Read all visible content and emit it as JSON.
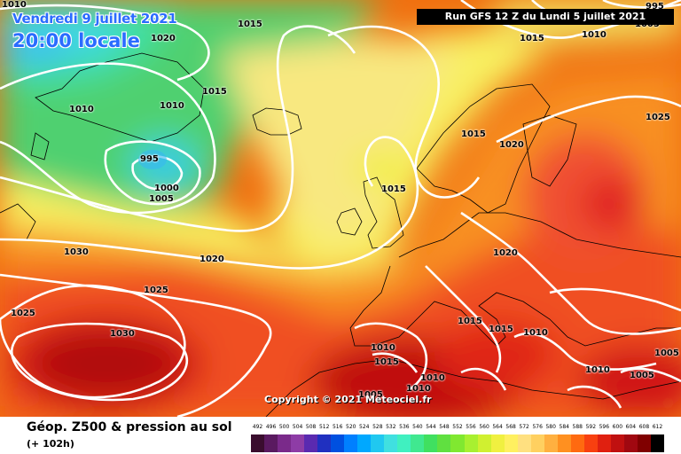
{
  "header": {
    "date_label": "Vendredi 9 juillet 2021",
    "time_label": "20:00 locale",
    "run_label": "Run GFS 12 Z du Lundi 5 juillet 2021"
  },
  "copyright": "Copyright © 2021 Meteociel.fr",
  "footer": {
    "title": "Géop. Z500 & pression au sol",
    "subtitle": "(+ 102h)"
  },
  "isobar_labels": [
    {
      "text": "1010",
      "id": "tl-1010"
    },
    {
      "text": "995",
      "id": "tr-995"
    },
    {
      "text": "1020",
      "id": "greenland-1020"
    },
    {
      "text": "1015",
      "id": "north-1015"
    },
    {
      "text": "1015",
      "id": "top-1015"
    },
    {
      "text": "1010",
      "id": "top-1010"
    },
    {
      "text": "1005",
      "id": "tr-1005"
    },
    {
      "text": "1010",
      "id": "w-1010"
    },
    {
      "text": "1010",
      "id": "greenland-1010"
    },
    {
      "text": "1015",
      "id": "iceland-1015"
    },
    {
      "text": "995",
      "id": "low-995"
    },
    {
      "text": "1000",
      "id": "low-1000"
    },
    {
      "text": "1005",
      "id": "low-1005"
    },
    {
      "text": "1015",
      "id": "norway-1015"
    },
    {
      "text": "1020",
      "id": "sweden-1020"
    },
    {
      "text": "1025",
      "id": "russia-1025"
    },
    {
      "text": "1015",
      "id": "uk-1015"
    },
    {
      "text": "1030",
      "id": "atl-1030"
    },
    {
      "text": "1020",
      "id": "mid-1020"
    },
    {
      "text": "1020",
      "id": "eu-1020"
    },
    {
      "text": "1025",
      "id": "atl-1025"
    },
    {
      "text": "1025",
      "id": "sw-1025"
    },
    {
      "text": "1030",
      "id": "azores-1030"
    },
    {
      "text": "1015",
      "id": "balk-1015"
    },
    {
      "text": "1015",
      "id": "it-1015"
    },
    {
      "text": "1010",
      "id": "it-1010"
    },
    {
      "text": "1010",
      "id": "sp-1010"
    },
    {
      "text": "1015",
      "id": "sp-1015"
    },
    {
      "text": "1010",
      "id": "af-1010a"
    },
    {
      "text": "1010",
      "id": "af-1010b"
    },
    {
      "text": "1005",
      "id": "af-1005"
    },
    {
      "text": "1010",
      "id": "tk-1010"
    },
    {
      "text": "1005",
      "id": "tk-1005"
    },
    {
      "text": "1005",
      "id": "e-1005"
    }
  ],
  "legend": {
    "labels": [
      "492",
      "496",
      "500",
      "504",
      "508",
      "512",
      "516",
      "520",
      "524",
      "528",
      "532",
      "536",
      "540",
      "544",
      "548",
      "552",
      "556",
      "560",
      "564",
      "568",
      "572",
      "576",
      "580",
      "584",
      "588",
      "592",
      "596",
      "600",
      "604",
      "608",
      "612"
    ],
    "colors": [
      "#3a0d2e",
      "#5a1a60",
      "#7a2a8a",
      "#8e3ca6",
      "#5a2ab0",
      "#2030c0",
      "#0050e0",
      "#0080ff",
      "#00a8ff",
      "#20c8f0",
      "#40e0e0",
      "#40f0c0",
      "#40e890",
      "#40e060",
      "#60e040",
      "#80e830",
      "#a8f030",
      "#d0f030",
      "#f0f040",
      "#fff060",
      "#ffe080",
      "#ffd060",
      "#ffb040",
      "#ff9020",
      "#ff6a10",
      "#f84010",
      "#e02010",
      "#c01010",
      "#a00810",
      "#800000",
      "#000000"
    ]
  }
}
